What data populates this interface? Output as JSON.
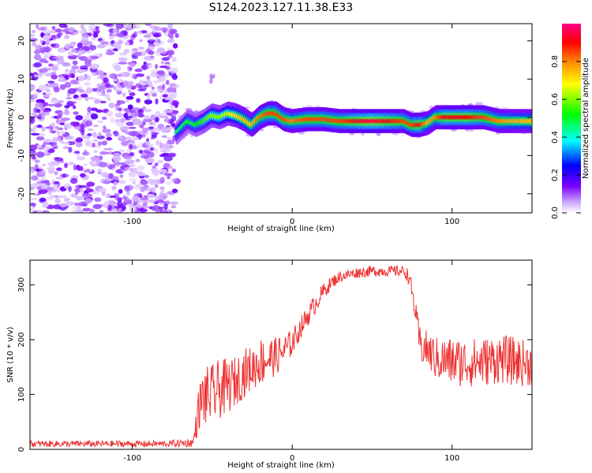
{
  "figure": {
    "title": "S124.2023.127.11.38.E33"
  },
  "chart_data": [
    {
      "type": "heatmap",
      "xlabel": "Height of straight line (km)",
      "ylabel": "Frequency (Hz)",
      "xlim": [
        -164,
        150
      ],
      "ylim": [
        -25,
        24.5
      ],
      "xticks": [
        -100,
        0,
        100
      ],
      "yticks": [
        -20,
        -10,
        0,
        10,
        20
      ],
      "grid": false,
      "colorbar": {
        "label": "Normalized spectral amplitude",
        "range": [
          0.0,
          1.0
        ],
        "ticks": [
          0.0,
          0.2,
          0.4,
          0.6,
          0.8
        ],
        "colors": [
          "#ffffff",
          "#7b00ff",
          "#0000ff",
          "#00ffff",
          "#00ff00",
          "#ffff00",
          "#ff8800",
          "#ff0000",
          "#ff0088"
        ]
      },
      "noise_region_x": [
        -164,
        -72
      ],
      "ridge": {
        "x": [
          -72,
          -65,
          -60,
          -55,
          -50,
          -45,
          -40,
          -35,
          -30,
          -25,
          -20,
          -15,
          -10,
          -5,
          0,
          10,
          20,
          30,
          40,
          50,
          60,
          70,
          75,
          80,
          85,
          90,
          95,
          100,
          110,
          120,
          130,
          140,
          150
        ],
        "y": [
          -4,
          -1,
          -2,
          -1,
          0.5,
          0,
          1,
          0.5,
          -0.5,
          -2,
          0,
          1,
          1,
          -0.5,
          -1,
          -0.5,
          -0.5,
          -1,
          -1,
          -1,
          -1,
          -1,
          -2,
          -2,
          -1.5,
          0,
          0,
          0,
          0,
          0,
          -1,
          -1,
          -1
        ],
        "amplitude": [
          0.45,
          0.5,
          0.5,
          0.55,
          0.6,
          0.6,
          0.65,
          0.7,
          0.75,
          0.75,
          0.8,
          0.85,
          0.85,
          0.85,
          0.8,
          0.85,
          0.85,
          0.85,
          0.9,
          0.95,
          0.9,
          0.85,
          0.85,
          0.9,
          0.75,
          0.8,
          0.9,
          0.9,
          0.9,
          0.85,
          0.8,
          0.75,
          0.75
        ]
      }
    },
    {
      "type": "line",
      "xlabel": "Height of straight line (km)",
      "ylabel": "SNR (10 * v/v)",
      "xlim": [
        -164,
        150
      ],
      "ylim": [
        0,
        345
      ],
      "xticks": [
        -100,
        0,
        100
      ],
      "yticks": [
        0,
        100,
        200,
        300
      ],
      "grid": false,
      "color": "#ee3333",
      "series": [
        {
          "x": [
            -164,
            -140,
            -120,
            -100,
            -80,
            -62,
            -58,
            -55,
            -50,
            -45,
            -40,
            -35,
            -30,
            -25,
            -20,
            -15,
            -10,
            -5,
            0,
            5,
            10,
            15,
            20,
            25,
            30,
            40,
            50,
            60,
            70,
            73,
            76,
            78,
            80,
            85,
            90,
            100,
            110,
            120,
            130,
            140,
            150
          ],
          "y": [
            10,
            10,
            10,
            10,
            10,
            12,
            80,
            95,
            100,
            110,
            115,
            125,
            140,
            148,
            160,
            165,
            170,
            180,
            195,
            220,
            245,
            268,
            290,
            305,
            315,
            322,
            325,
            325,
            325,
            315,
            270,
            230,
            190,
            180,
            165,
            160,
            158,
            160,
            165,
            160,
            155
          ],
          "spread": [
            6,
            6,
            6,
            6,
            6,
            8,
            45,
            55,
            55,
            55,
            50,
            45,
            45,
            40,
            45,
            40,
            35,
            30,
            25,
            20,
            20,
            18,
            15,
            12,
            10,
            10,
            10,
            10,
            10,
            15,
            20,
            25,
            35,
            35,
            40,
            45,
            45,
            45,
            45,
            45,
            40
          ]
        }
      ]
    }
  ]
}
